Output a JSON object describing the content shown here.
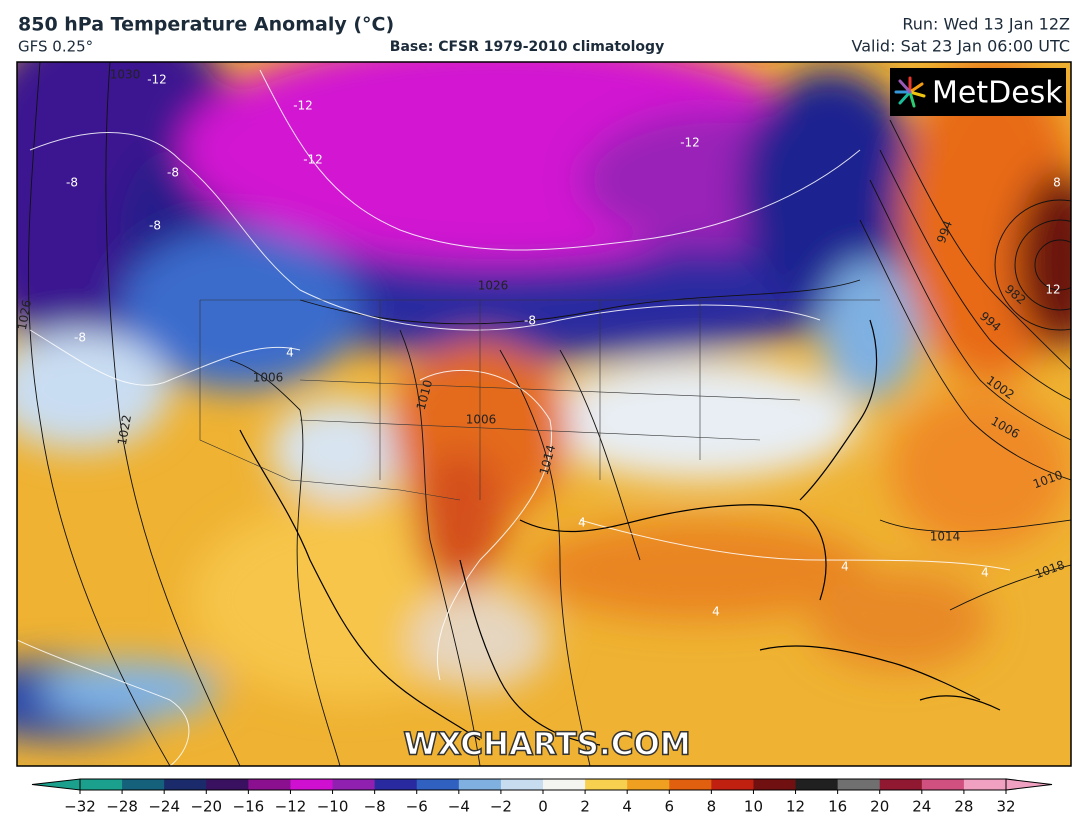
{
  "header": {
    "title": "850 hPa Temperature Anomaly (°C)",
    "model": "GFS 0.25°",
    "base": "Base: CFSR 1979-2010 climatology",
    "run": "Run: Wed 13 Jan 12Z",
    "valid": "Valid: Sat 23 Jan 06:00 UTC"
  },
  "logo": "MetDesk",
  "watermark": "WXCHARTS.COM",
  "map_labels": [
    "-12",
    "-12",
    "-12",
    "-12",
    "-8",
    "-8",
    "-8",
    "-8",
    "-8",
    "1026",
    "1026",
    "1022",
    "1006",
    "1010",
    "1006",
    "1014",
    "4",
    "4",
    "4",
    "4",
    "4",
    "1014",
    "1018",
    "1010",
    "1006",
    "1002",
    "994",
    "982",
    "994",
    "12",
    "8",
    "1030"
  ],
  "colorbar": {
    "ticks": [
      "−32",
      "−28",
      "−24",
      "−20",
      "−16",
      "−12",
      "−10",
      "−8",
      "−6",
      "−4",
      "−2",
      "0",
      "2",
      "4",
      "6",
      "8",
      "10",
      "12",
      "16",
      "20",
      "24",
      "28",
      "32"
    ]
  }
}
